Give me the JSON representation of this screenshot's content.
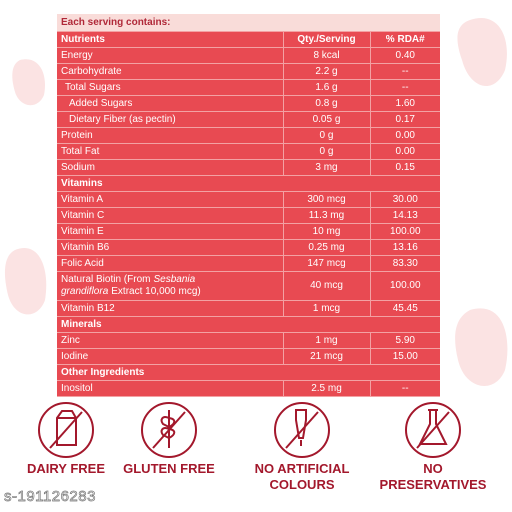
{
  "table": {
    "caption": "Each serving contains:",
    "header": [
      "Nutrients",
      "Qty./Serving",
      "% RDA#"
    ],
    "rows": [
      {
        "name": "Energy",
        "qty": "8 kcal",
        "rda": "0.40"
      },
      {
        "name": "Carbohydrate",
        "qty": "2.2 g",
        "rda": "--"
      },
      {
        "name": "Total Sugars",
        "qty": "1.6 g",
        "rda": "--",
        "level": 1
      },
      {
        "name": "Added Sugars",
        "qty": "0.8 g",
        "rda": "1.60",
        "level": 2
      },
      {
        "name": "Dietary Fiber (as pectin)",
        "qty": "0.05 g",
        "rda": "0.17",
        "level": 2
      },
      {
        "name": "Protein",
        "qty": "0 g",
        "rda": "0.00"
      },
      {
        "name": "Total Fat",
        "qty": "0 g",
        "rda": "0.00"
      },
      {
        "name": "Sodium",
        "qty": "3 mg",
        "rda": "0.15"
      },
      {
        "section": "Vitamins"
      },
      {
        "name": "Vitamin A",
        "qty": "300 mcg",
        "rda": "30.00"
      },
      {
        "name": "Vitamin C",
        "qty": "11.3 mg",
        "rda": "14.13"
      },
      {
        "name": "Vitamin E",
        "qty": "10 mg",
        "rda": "100.00"
      },
      {
        "name": "Vitamin B6",
        "qty": "0.25 mg",
        "rda": "13.16"
      },
      {
        "name": "Folic Acid",
        "qty": "147 mcg",
        "rda": "83.30"
      },
      {
        "name_parts": [
          "Natural Biotin (From",
          "Sesbania grandiflora",
          "Extract 10,000 mcg)"
        ],
        "qty": "40 mcg",
        "rda": "100.00"
      },
      {
        "name": "Vitamin B12",
        "qty": "1 mcg",
        "rda": "45.45"
      },
      {
        "section": "Minerals"
      },
      {
        "name": "Zinc",
        "qty": "1 mg",
        "rda": "5.90"
      },
      {
        "name": "Iodine",
        "qty": "21 mcg",
        "rda": "15.00"
      },
      {
        "section": "Other Ingredients"
      },
      {
        "name": "Inositol",
        "qty": "2.5 mg",
        "rda": "--"
      }
    ]
  },
  "badges": [
    {
      "label": "DAIRY FREE"
    },
    {
      "label": "GLUTEN FREE"
    },
    {
      "label": "NO ARTIFICIAL COLOURS"
    },
    {
      "label": "NO PRESERVATIVES"
    }
  ],
  "watermark": "s-191126283"
}
